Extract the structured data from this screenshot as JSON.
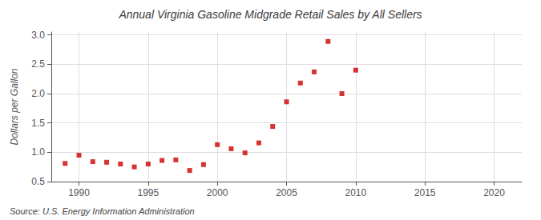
{
  "chart_data": {
    "type": "scatter",
    "title": "Annual Virginia Gasoline Midgrade Retail Sales by All Sellers",
    "ylabel": "Dollars per Gallon",
    "annotation": "Source: U.S. Energy Information Administration",
    "x": [
      1989,
      1990,
      1991,
      1992,
      1993,
      1994,
      1995,
      1996,
      1997,
      1998,
      1999,
      2000,
      2001,
      2002,
      2003,
      2004,
      2005,
      2006,
      2007,
      2008,
      2009,
      2010
    ],
    "values": [
      0.81,
      0.95,
      0.84,
      0.83,
      0.8,
      0.75,
      0.8,
      0.86,
      0.87,
      0.69,
      0.79,
      1.13,
      1.06,
      0.99,
      1.16,
      1.44,
      1.86,
      2.18,
      2.37,
      2.89,
      2.0,
      2.4
    ],
    "color": "#cc0000",
    "marker": "square",
    "xlim": [
      1988,
      2022
    ],
    "xticks": [
      1990,
      1995,
      2000,
      2005,
      2010,
      2015,
      2020
    ],
    "ylim": [
      0.5,
      3.05
    ],
    "yticks": [
      0.5,
      {
        "value": 1,
        "label": "1.0"
      },
      1.5,
      {
        "value": 2,
        "label": "2.0"
      },
      2.5,
      {
        "value": 3,
        "label": "3.0"
      }
    ],
    "grid": true
  }
}
